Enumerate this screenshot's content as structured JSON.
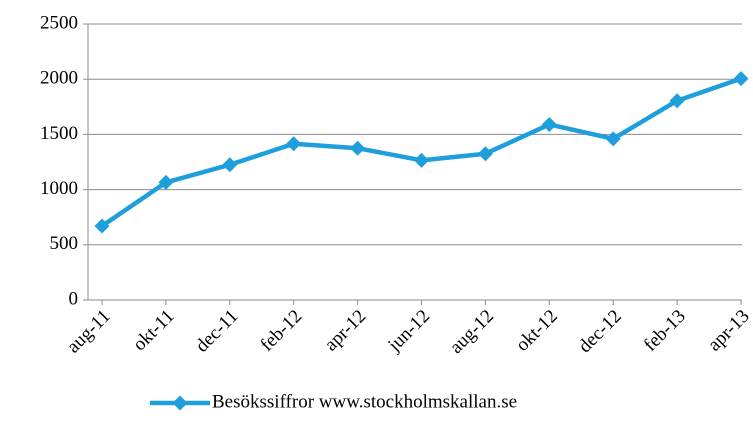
{
  "chart_data": {
    "type": "line",
    "categories": [
      "aug-11",
      "okt-11",
      "dec-11",
      "feb-12",
      "apr-12",
      "jun-12",
      "aug-12",
      "okt-12",
      "dec-12",
      "feb-13",
      "apr-13"
    ],
    "series": [
      {
        "name": "Besökssiffror www.stockholmskallan.se",
        "color": "#1e9fdc",
        "values": [
          670,
          1065,
          1225,
          1415,
          1375,
          1265,
          1325,
          1590,
          1460,
          1805,
          2005
        ]
      }
    ],
    "ylim": [
      0,
      2500
    ],
    "yticks": [
      0,
      500,
      1000,
      1500,
      2000,
      2500
    ],
    "grid": true,
    "legend": "bottom"
  }
}
